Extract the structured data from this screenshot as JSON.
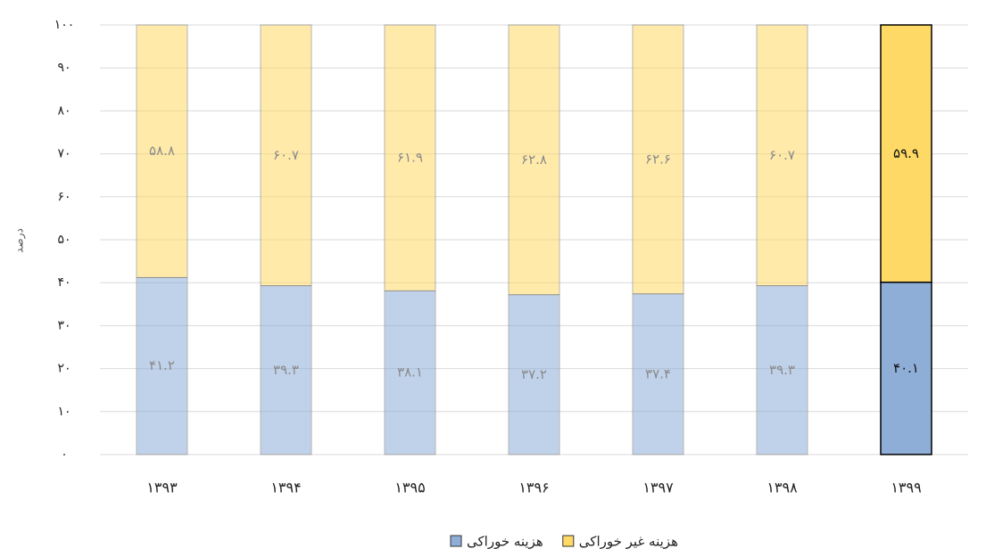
{
  "chart_data": {
    "type": "stacked_bar",
    "y_label": "درصد",
    "categories": [
      "۱۳۹۳",
      "۱۳۹۴",
      "۱۳۹۵",
      "۱۳۹۶",
      "۱۳۹۷",
      "۱۳۹۸",
      "۱۳۹۹"
    ],
    "series": [
      {
        "name": "هزینه خوراکی",
        "color": "#8eaed8",
        "values": [
          41.2,
          39.3,
          38.1,
          37.2,
          37.4,
          39.3,
          40.1
        ],
        "value_labels": [
          "۴۱.۲",
          "۳۹.۳",
          "۳۸.۱",
          "۳۷.۲",
          "۳۷.۴",
          "۳۹.۳",
          "۴۰.۱"
        ]
      },
      {
        "name": "هزینه غیر خوراکی",
        "color": "#ffd966",
        "values": [
          58.8,
          60.7,
          61.9,
          62.8,
          62.6,
          60.7,
          59.9
        ],
        "value_labels": [
          "۵۸.۸",
          "۶۰.۷",
          "۶۱.۹",
          "۶۲.۸",
          "۶۲.۶",
          "۶۰.۷",
          "۵۹.۹"
        ]
      }
    ],
    "ylim": [
      0,
      100
    ],
    "yticks": [
      {
        "value": 0,
        "label": "۰"
      },
      {
        "value": 10,
        "label": "۱۰"
      },
      {
        "value": 20,
        "label": "۲۰"
      },
      {
        "value": 30,
        "label": "۳۰"
      },
      {
        "value": 40,
        "label": "۴۰"
      },
      {
        "value": 50,
        "label": "۵۰"
      },
      {
        "value": 60,
        "label": "۶۰"
      },
      {
        "value": 70,
        "label": "۷۰"
      },
      {
        "value": 80,
        "label": "۸۰"
      },
      {
        "value": 90,
        "label": "۹۰"
      },
      {
        "value": 100,
        "label": "۱۰۰"
      }
    ],
    "grid": true
  }
}
